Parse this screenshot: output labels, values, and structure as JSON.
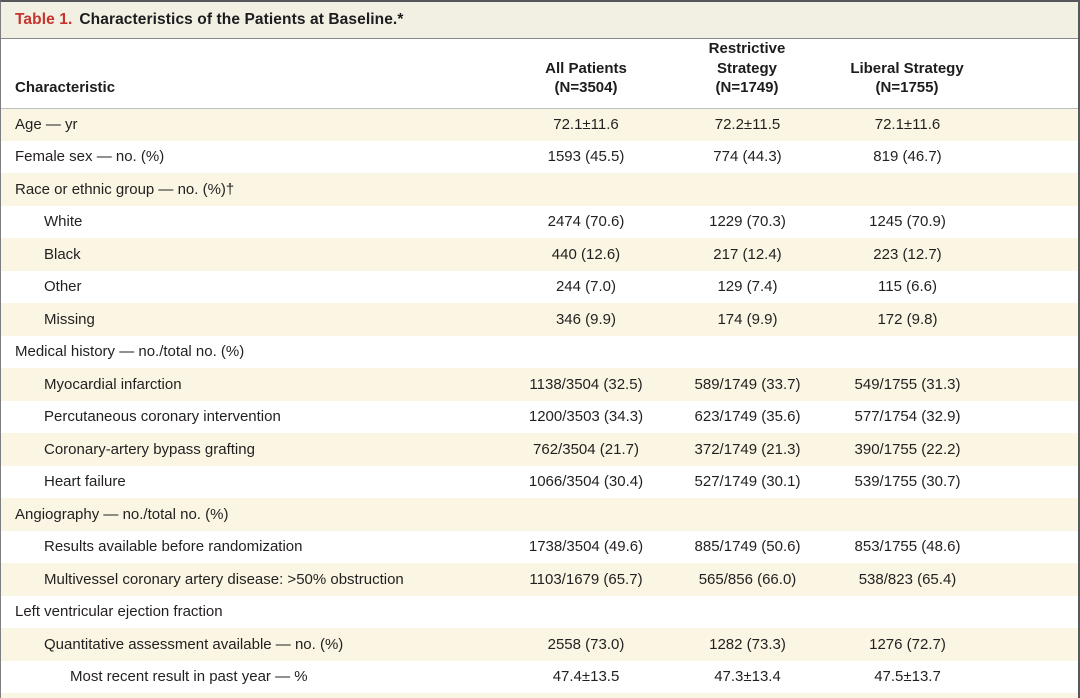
{
  "title": {
    "label": "Table 1.",
    "text": "Characteristics of the Patients at Baseline.*"
  },
  "columns": [
    {
      "label": "Characteristic"
    },
    {
      "line1": "All Patients",
      "line2": "(N=3504)"
    },
    {
      "line1": "Restrictive Strategy",
      "line2": "(N=1749)"
    },
    {
      "line1": "Liberal Strategy",
      "line2": "(N=1755)"
    }
  ],
  "rows": [
    {
      "label": "Age — yr",
      "indent": 0,
      "values": [
        "72.1±11.6",
        "72.2±11.5",
        "72.1±11.6"
      ]
    },
    {
      "label": "Female sex — no. (%)",
      "indent": 0,
      "values": [
        "1593 (45.5)",
        "774 (44.3)",
        "819 (46.7)"
      ]
    },
    {
      "label": "Race or ethnic group — no. (%)†",
      "indent": 0,
      "values": [
        "",
        "",
        ""
      ]
    },
    {
      "label": "White",
      "indent": 1,
      "values": [
        "2474 (70.6)",
        "1229 (70.3)",
        "1245 (70.9)"
      ]
    },
    {
      "label": "Black",
      "indent": 1,
      "values": [
        "440 (12.6)",
        "217 (12.4)",
        "223 (12.7)"
      ]
    },
    {
      "label": "Other",
      "indent": 1,
      "values": [
        "244 (7.0)",
        "129 (7.4)",
        "115 (6.6)"
      ]
    },
    {
      "label": "Missing",
      "indent": 1,
      "values": [
        "346 (9.9)",
        "174 (9.9)",
        "172 (9.8)"
      ]
    },
    {
      "label": "Medical history — no./total no. (%)",
      "indent": 0,
      "values": [
        "",
        "",
        ""
      ]
    },
    {
      "label": "Myocardial infarction",
      "indent": 1,
      "values": [
        "1138/3504 (32.5)",
        "589/1749 (33.7)",
        "549/1755 (31.3)"
      ]
    },
    {
      "label": "Percutaneous coronary intervention",
      "indent": 1,
      "values": [
        "1200/3503 (34.3)",
        "623/1749 (35.6)",
        "577/1754 (32.9)"
      ]
    },
    {
      "label": "Coronary-artery bypass grafting",
      "indent": 1,
      "values": [
        "762/3504 (21.7)",
        "372/1749 (21.3)",
        "390/1755 (22.2)"
      ]
    },
    {
      "label": "Heart failure",
      "indent": 1,
      "values": [
        "1066/3504 (30.4)",
        "527/1749 (30.1)",
        "539/1755 (30.7)"
      ]
    },
    {
      "label": "Angiography — no./total no. (%)",
      "indent": 0,
      "values": [
        "",
        "",
        ""
      ]
    },
    {
      "label": "Results available before randomization",
      "indent": 1,
      "values": [
        "1738/3504 (49.6)",
        "885/1749 (50.6)",
        "853/1755 (48.6)"
      ]
    },
    {
      "label": "Multivessel coronary artery disease: >50% obstruction",
      "indent": 1,
      "values": [
        "1103/1679 (65.7)",
        "565/856 (66.0)",
        "538/823 (65.4)"
      ]
    },
    {
      "label": "Left ventricular ejection fraction",
      "indent": 0,
      "values": [
        "",
        "",
        ""
      ]
    },
    {
      "label": "Quantitative assessment available — no. (%)",
      "indent": 1,
      "values": [
        "2558 (73.0)",
        "1282 (73.3)",
        "1276 (72.7)"
      ]
    },
    {
      "label": "Most recent result in past year — %",
      "indent": 2,
      "values": [
        "47.4±13.5",
        "47.3±13.4",
        "47.5±13.7"
      ]
    }
  ],
  "colors": {
    "accent_red": "#c5342d",
    "titlebar_bg": "#f2efe3",
    "row_stripe": "#fbf5e3",
    "border_dark": "#57585b",
    "border_light": "#bcbec0",
    "text": "#231f20"
  }
}
